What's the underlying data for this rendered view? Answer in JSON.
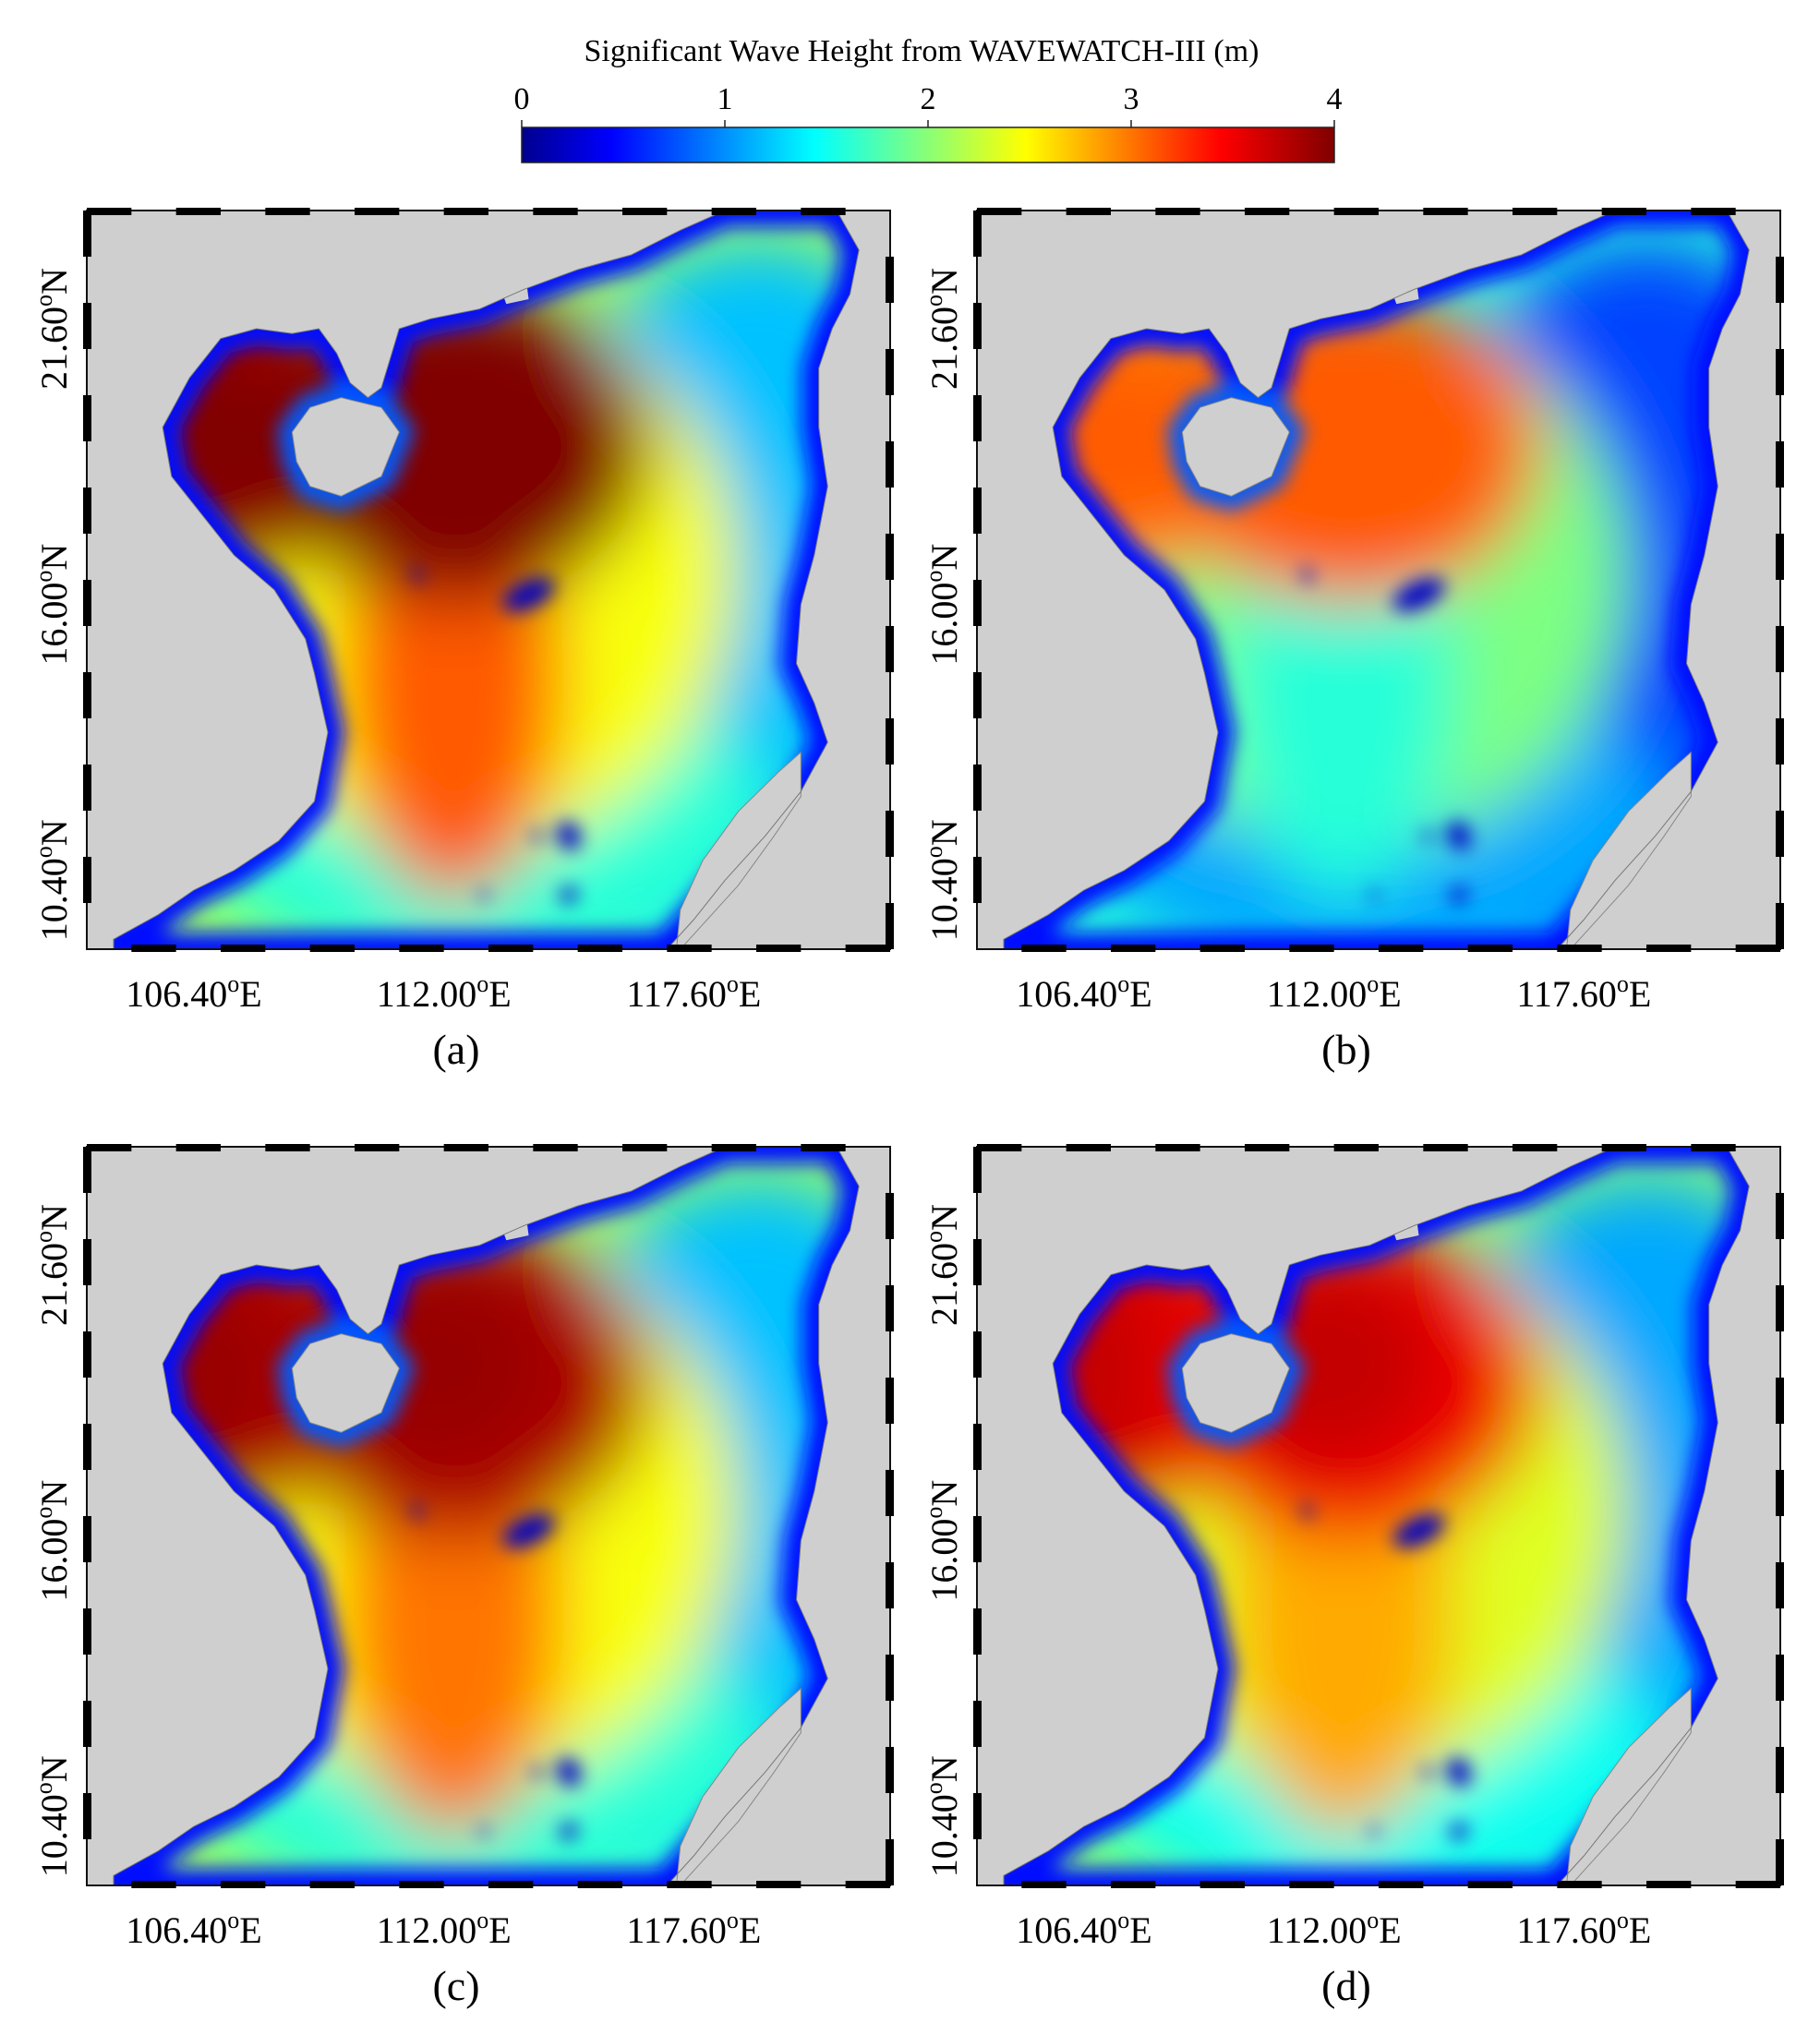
{
  "chart_data": {
    "type": "heatmap",
    "title": "Significant Wave Height from WAVEWATCH-III (m)",
    "colorbar": {
      "ticks": [
        "0",
        "1",
        "2",
        "3",
        "4"
      ],
      "range": [
        0,
        4
      ],
      "colormap": [
        "#00008f",
        "#0000ff",
        "#00ffff",
        "#ffff00",
        "#ff0000",
        "#800000"
      ]
    },
    "grid": false,
    "land_color": "#cfcfcf",
    "lon_range": [
      104.0,
      122.0
    ],
    "lat_range": [
      9.0,
      24.0
    ],
    "x_tick_values": [
      106.4,
      112.0,
      117.6
    ],
    "x_tick_labels": [
      "106.40",
      "112.00",
      "117.60"
    ],
    "x_tick_unit": "E",
    "y_tick_values": [
      10.4,
      16.0,
      21.6
    ],
    "y_tick_labels": [
      "10.40",
      "16.00",
      "21.60"
    ],
    "y_tick_unit": "N",
    "degree_symbol": "o",
    "panels": [
      {
        "label": "(a)",
        "peak_hs": 4.0,
        "gulf_hs": 3.9,
        "hainan_east_hs": 4.0,
        "south_tongue_hs": 3.1,
        "open_sea_hs": 2.1
      },
      {
        "label": "(b)",
        "peak_hs": 3.1,
        "gulf_hs": 3.0,
        "hainan_east_hs": 3.1,
        "south_tongue_hs": 1.6,
        "open_sea_hs": 1.6
      },
      {
        "label": "(c)",
        "peak_hs": 3.9,
        "gulf_hs": 3.8,
        "hainan_east_hs": 3.8,
        "south_tongue_hs": 3.0,
        "open_sea_hs": 2.1
      },
      {
        "label": "(d)",
        "peak_hs": 3.7,
        "gulf_hs": 3.6,
        "hainan_east_hs": 3.5,
        "south_tongue_hs": 2.8,
        "open_sea_hs": 2.0
      }
    ]
  }
}
